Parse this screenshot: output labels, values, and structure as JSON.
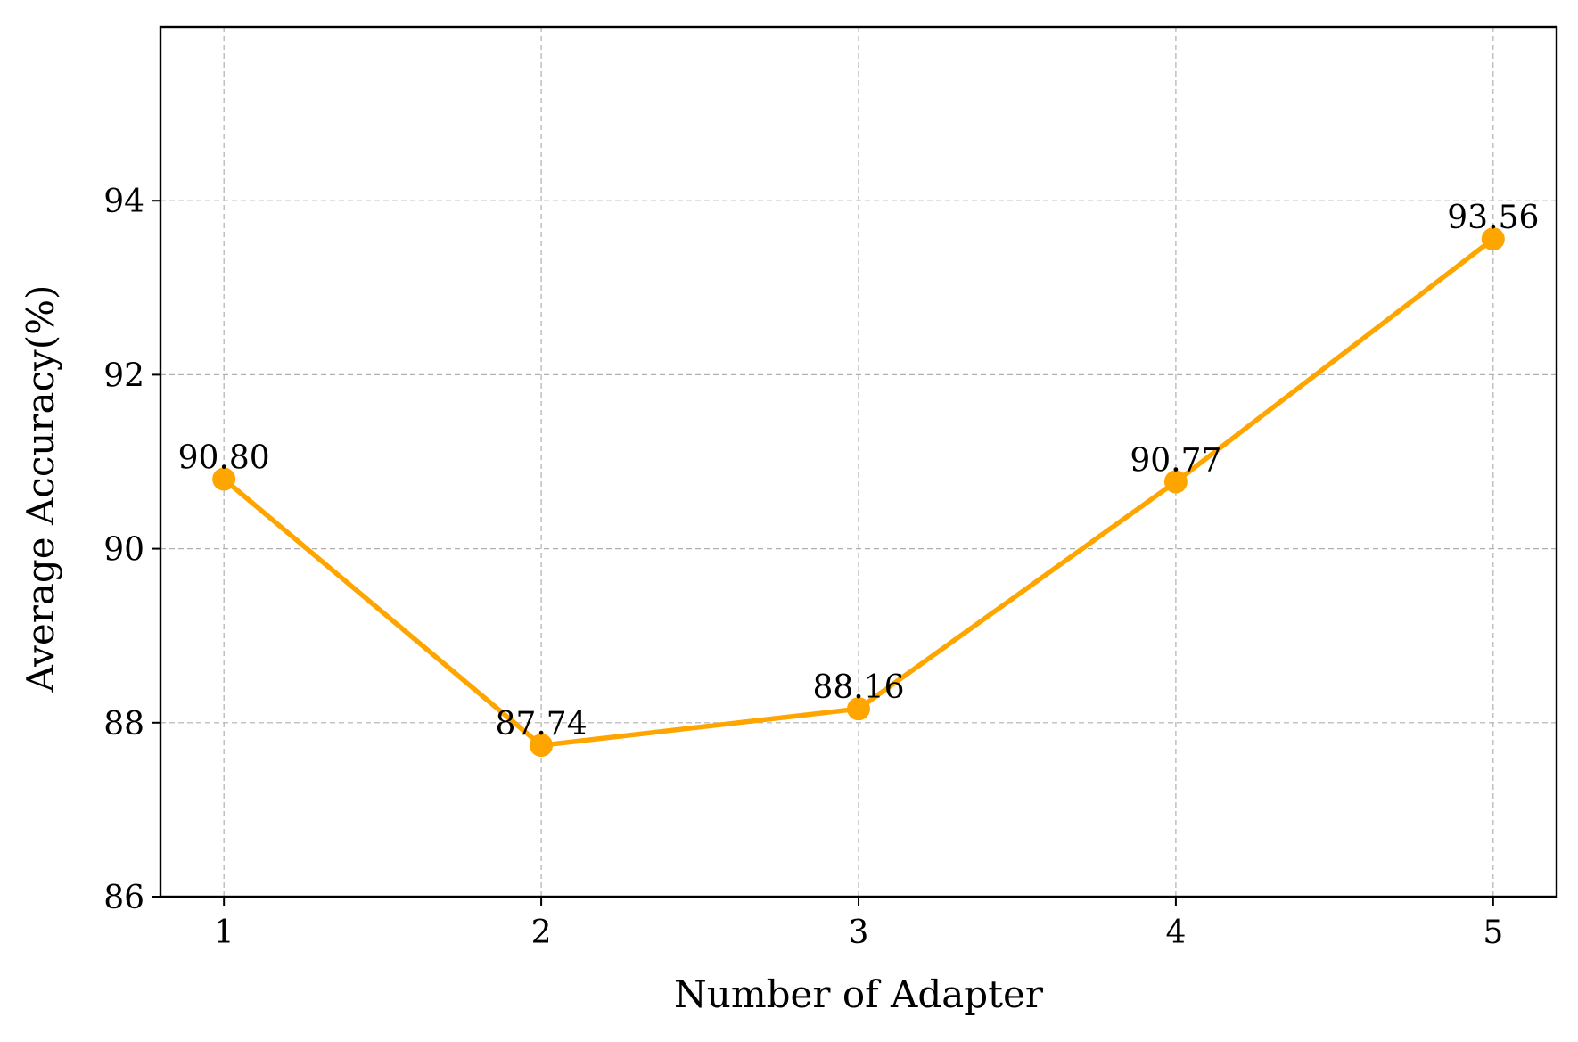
{
  "chart_data": {
    "type": "line",
    "title": "",
    "xlabel": "Number of Adapter",
    "ylabel": "Average Accuracy(%)",
    "x": [
      1,
      2,
      3,
      4,
      5
    ],
    "xlim": [
      0.8,
      5.2
    ],
    "ylim": [
      86,
      96
    ],
    "xticks": [
      1,
      2,
      3,
      4,
      5
    ],
    "yticks": [
      86,
      88,
      90,
      92,
      94
    ],
    "grid": true,
    "series": [
      {
        "values": [
          90.8,
          87.74,
          88.16,
          90.77,
          93.56
        ],
        "labels": [
          "90.80",
          "87.74",
          "88.16",
          "90.77",
          "93.56"
        ],
        "color": "#ffa500",
        "marker": "circle"
      }
    ]
  }
}
